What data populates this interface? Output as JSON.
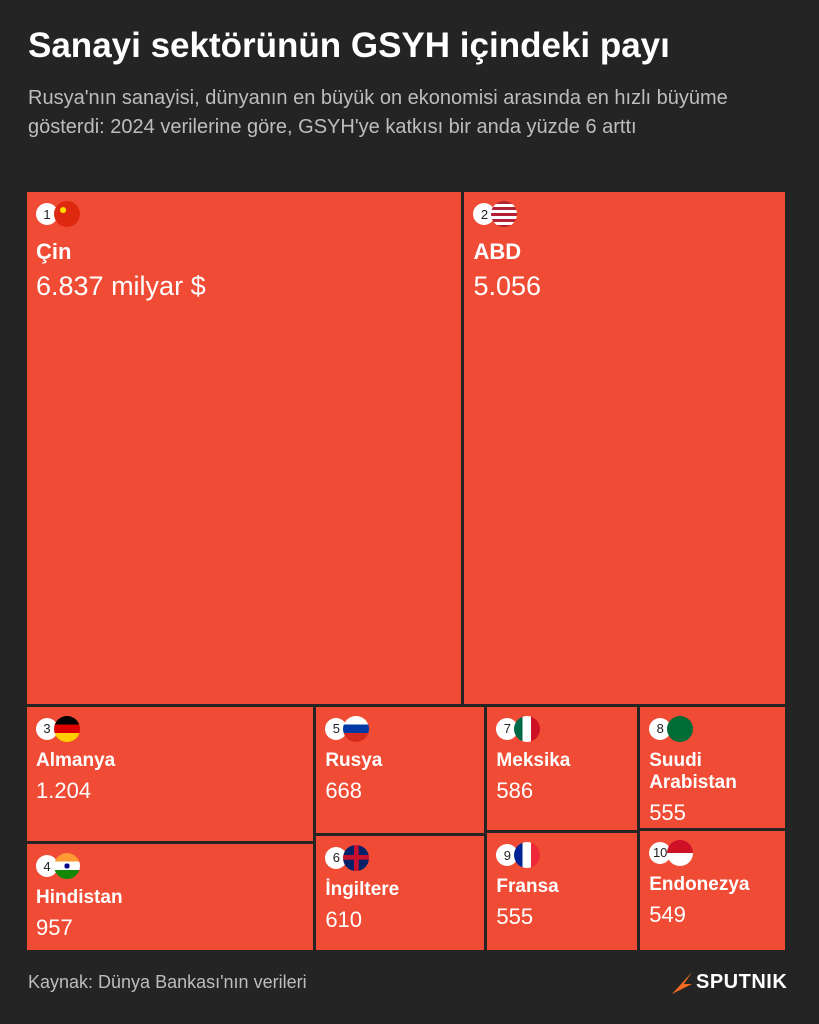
{
  "title": "Sanayi sektörünün GSYH içindeki payı",
  "subtitle": "Rusya'nın sanayisi, dünyanın en büyük on ekonomisi arasında en hızlı büyüme gösterdi: 2024 verilerine göre, GSYH'ye katkısı bir anda yüzde 6 arttı",
  "source": "Kaynak: Dünya Bankası'nın verileri",
  "logo": "SPUTNIK",
  "chart_data": {
    "type": "treemap",
    "color": "#f04b34",
    "ranks": [
      1,
      2,
      3,
      4,
      5,
      6,
      7,
      8,
      9,
      10
    ],
    "categories": [
      "Çin",
      "ABD",
      "Almanya",
      "Hindistan",
      "Rusya",
      "İngiltere",
      "Meksika",
      "Suudi Arabistan",
      "Fransa",
      "Endonezya"
    ],
    "values": [
      6837,
      5056,
      1204,
      957,
      668,
      610,
      586,
      555,
      555,
      549
    ],
    "value_labels": [
      "6.837 milyar $",
      "5.056",
      "1.204",
      "957",
      "668",
      "610",
      "586",
      "555",
      "555",
      "549"
    ]
  }
}
